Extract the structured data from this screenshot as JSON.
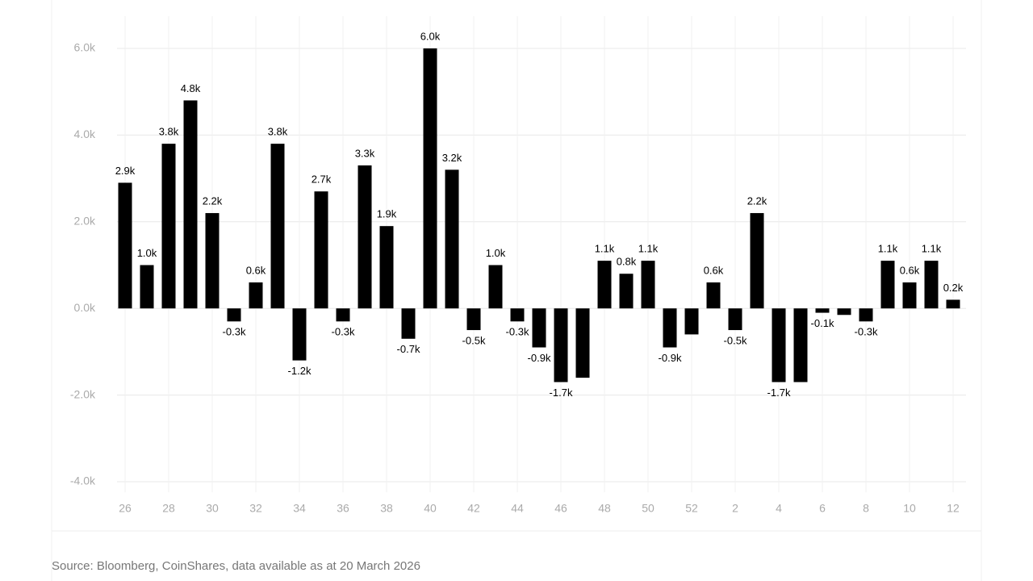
{
  "chart_data": {
    "type": "bar",
    "source": "Source: Bloomberg, CoinShares, data available as at 20 March 2026",
    "categories": [
      "26",
      null,
      "28",
      null,
      "30",
      null,
      "32",
      null,
      "34",
      null,
      "36",
      null,
      "38",
      null,
      "40",
      null,
      "42",
      null,
      "44",
      null,
      "46",
      null,
      "48",
      null,
      "50",
      null,
      "52",
      null,
      "2",
      null,
      "4",
      null,
      "6",
      null,
      "8",
      null,
      "10",
      null,
      "12"
    ],
    "values": [
      2.9,
      1.0,
      3.8,
      4.8,
      2.2,
      -0.3,
      0.6,
      3.8,
      -1.2,
      2.7,
      -0.3,
      3.3,
      1.9,
      -0.7,
      6.0,
      3.2,
      -0.5,
      1.0,
      -0.3,
      -0.9,
      -1.7,
      -1.6,
      1.1,
      0.8,
      1.1,
      -0.9,
      -0.6,
      0.6,
      -0.5,
      2.2,
      -1.7,
      -1.7,
      -0.1,
      -0.15,
      -0.3,
      1.1,
      0.6,
      1.1,
      0.2
    ],
    "value_labels": [
      "2.9k",
      "1.0k",
      "3.8k",
      "4.8k",
      "2.2k",
      "-0.3k",
      "0.6k",
      "3.8k",
      "-1.2k",
      "2.7k",
      "-0.3k",
      "3.3k",
      "1.9k",
      "-0.7k",
      "6.0k",
      "3.2k",
      "-0.5k",
      "1.0k",
      "-0.3k",
      "-0.9k",
      "-1.7k",
      null,
      "1.1k",
      "0.8k",
      "1.1k",
      "-0.9k",
      null,
      "0.6k",
      "-0.5k",
      "2.2k",
      "-1.7k",
      null,
      "-0.1k",
      null,
      "-0.3k",
      "1.1k",
      "0.6k",
      "1.1k",
      "0.2k"
    ],
    "color": "#000000",
    "ylim": [
      -4,
      6
    ],
    "yticks": [
      {
        "value": -4,
        "label": "-4.0k"
      },
      {
        "value": -2,
        "label": "-2.0k"
      },
      {
        "value": 0,
        "label": "0.0k"
      },
      {
        "value": 2,
        "label": "2.0k"
      },
      {
        "value": 4,
        "label": "4.0k"
      },
      {
        "value": 6,
        "label": "6.0k"
      }
    ],
    "grid": true
  }
}
